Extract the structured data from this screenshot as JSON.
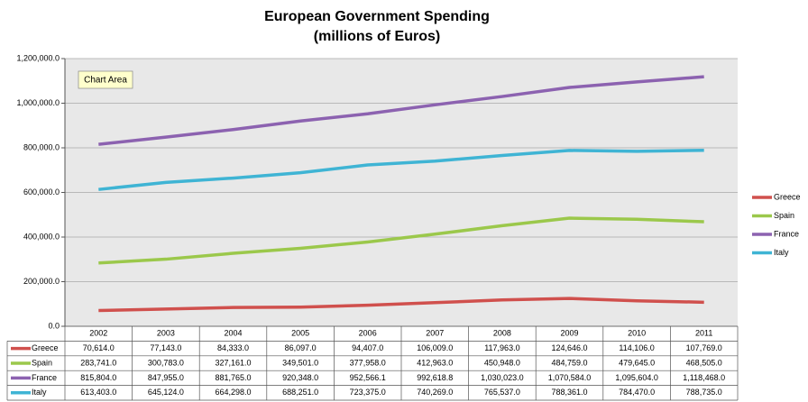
{
  "chart_data": {
    "type": "line",
    "title": "European Government Spending",
    "subtitle": "(millions of Euros)",
    "annotation": "Chart Area",
    "categories": [
      "2002",
      "2003",
      "2004",
      "2005",
      "2006",
      "2007",
      "2008",
      "2009",
      "2010",
      "2011"
    ],
    "series": [
      {
        "name": "Greece",
        "color": "#d0504d",
        "values": [
          70614,
          77143,
          84333,
          86097,
          94407,
          106009,
          117963,
          124646,
          114106,
          107769
        ],
        "value_labels": [
          "70,614.0",
          "77,143.0",
          "84,333.0",
          "86,097.0",
          "94,407.0",
          "106,009.0",
          "117,963.0",
          "124,646.0",
          "114,106.0",
          "107,769.0"
        ]
      },
      {
        "name": "Spain",
        "color": "#9bc84b",
        "values": [
          283741,
          300783,
          327161,
          349501,
          377958,
          412963,
          450948,
          484759,
          479645,
          468505
        ],
        "value_labels": [
          "283,741.0",
          "300,783.0",
          "327,161.0",
          "349,501.0",
          "377,958.0",
          "412,963.0",
          "450,948.0",
          "484,759.0",
          "479,645.0",
          "468,505.0"
        ]
      },
      {
        "name": "France",
        "color": "#8c62b0",
        "values": [
          815804,
          847955,
          881765,
          920348,
          952566.1,
          992618.8,
          1030023,
          1070584,
          1095604,
          1118468
        ],
        "value_labels": [
          "815,804.0",
          "847,955.0",
          "881,765.0",
          "920,348.0",
          "952,566.1",
          "992,618.8",
          "1,030,023.0",
          "1,070,584.0",
          "1,095,604.0",
          "1,118,468.0"
        ]
      },
      {
        "name": "Italy",
        "color": "#3fb4d4",
        "values": [
          613403,
          645124,
          664298,
          688251,
          723375,
          740269,
          765537,
          788361,
          784470,
          788735
        ],
        "value_labels": [
          "613,403.0",
          "645,124.0",
          "664,298.0",
          "688,251.0",
          "723,375.0",
          "740,269.0",
          "765,537.0",
          "788,361.0",
          "784,470.0",
          "788,735.0"
        ]
      }
    ],
    "ylim": [
      0,
      1200000
    ],
    "yticks": [
      {
        "value": 0,
        "label": "0.0"
      },
      {
        "value": 200000,
        "label": "200,000.0"
      },
      {
        "value": 400000,
        "label": "400,000.0"
      },
      {
        "value": 600000,
        "label": "600,000.0"
      },
      {
        "value": 800000,
        "label": "800,000.0"
      },
      {
        "value": 1000000,
        "label": "1,000,000.0"
      },
      {
        "value": 1200000,
        "label": "1,200,000.0"
      }
    ],
    "grid": true,
    "legend": "right"
  }
}
